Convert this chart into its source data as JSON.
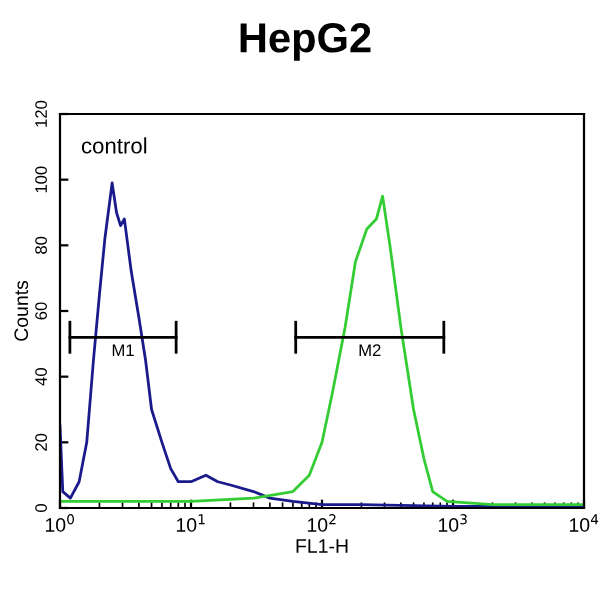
{
  "chart_data": {
    "type": "line",
    "title": "HepG2",
    "xlabel": "FL1-H",
    "ylabel": "Counts",
    "log": "x",
    "annotations": [
      "control"
    ],
    "series": [
      {
        "color": "#1a1a8c",
        "x": [
          1.0,
          1.05,
          1.2,
          1.4,
          1.6,
          1.8,
          2.0,
          2.2,
          2.5,
          2.7,
          2.9,
          3.1,
          3.5,
          4.0,
          4.5,
          5,
          6,
          7,
          8,
          10,
          13,
          16,
          20,
          30,
          40,
          60,
          100,
          200,
          1000,
          10000
        ],
        "values": [
          25,
          5,
          3,
          8,
          20,
          45,
          65,
          82,
          99,
          90,
          86,
          88,
          72,
          58,
          45,
          30,
          20,
          12,
          8,
          8,
          10,
          8,
          7,
          5,
          3,
          2,
          1,
          1,
          0.5,
          0.5
        ]
      },
      {
        "color": "#33cc33",
        "x": [
          1,
          10,
          30,
          60,
          80,
          100,
          120,
          150,
          180,
          220,
          260,
          290,
          330,
          400,
          500,
          600,
          700,
          900,
          2000,
          10000
        ],
        "values": [
          2,
          2,
          3,
          5,
          10,
          20,
          35,
          55,
          75,
          85,
          88,
          95,
          80,
          55,
          30,
          15,
          5,
          2,
          1,
          1
        ]
      },
      {
        "name": "M1",
        "color": "#000000",
        "x": [
          1.19,
          7.7
        ],
        "values": [
          52,
          52
        ],
        "errors": [
          5,
          5
        ]
      },
      {
        "name": "M2",
        "color": "#000000",
        "x": [
          63,
          851
        ],
        "values": [
          52,
          52
        ],
        "errors": [
          5,
          5
        ]
      }
    ],
    "xlim": [
      1,
      10000
    ],
    "ylim": [
      0,
      120
    ],
    "xticks": [
      {
        "value": 1,
        "label": "10$^{0}$"
      },
      {
        "value": 10,
        "label": "10$^{1}$"
      },
      {
        "value": 100,
        "label": "10$^{2}$"
      },
      {
        "value": 1000,
        "label": "10$^{3}$"
      },
      {
        "value": 10000,
        "label": "10$^{4}$"
      }
    ],
    "yticks": [
      0,
      20,
      40,
      60,
      80,
      100,
      120
    ],
    "grid": false,
    "legend": false
  }
}
